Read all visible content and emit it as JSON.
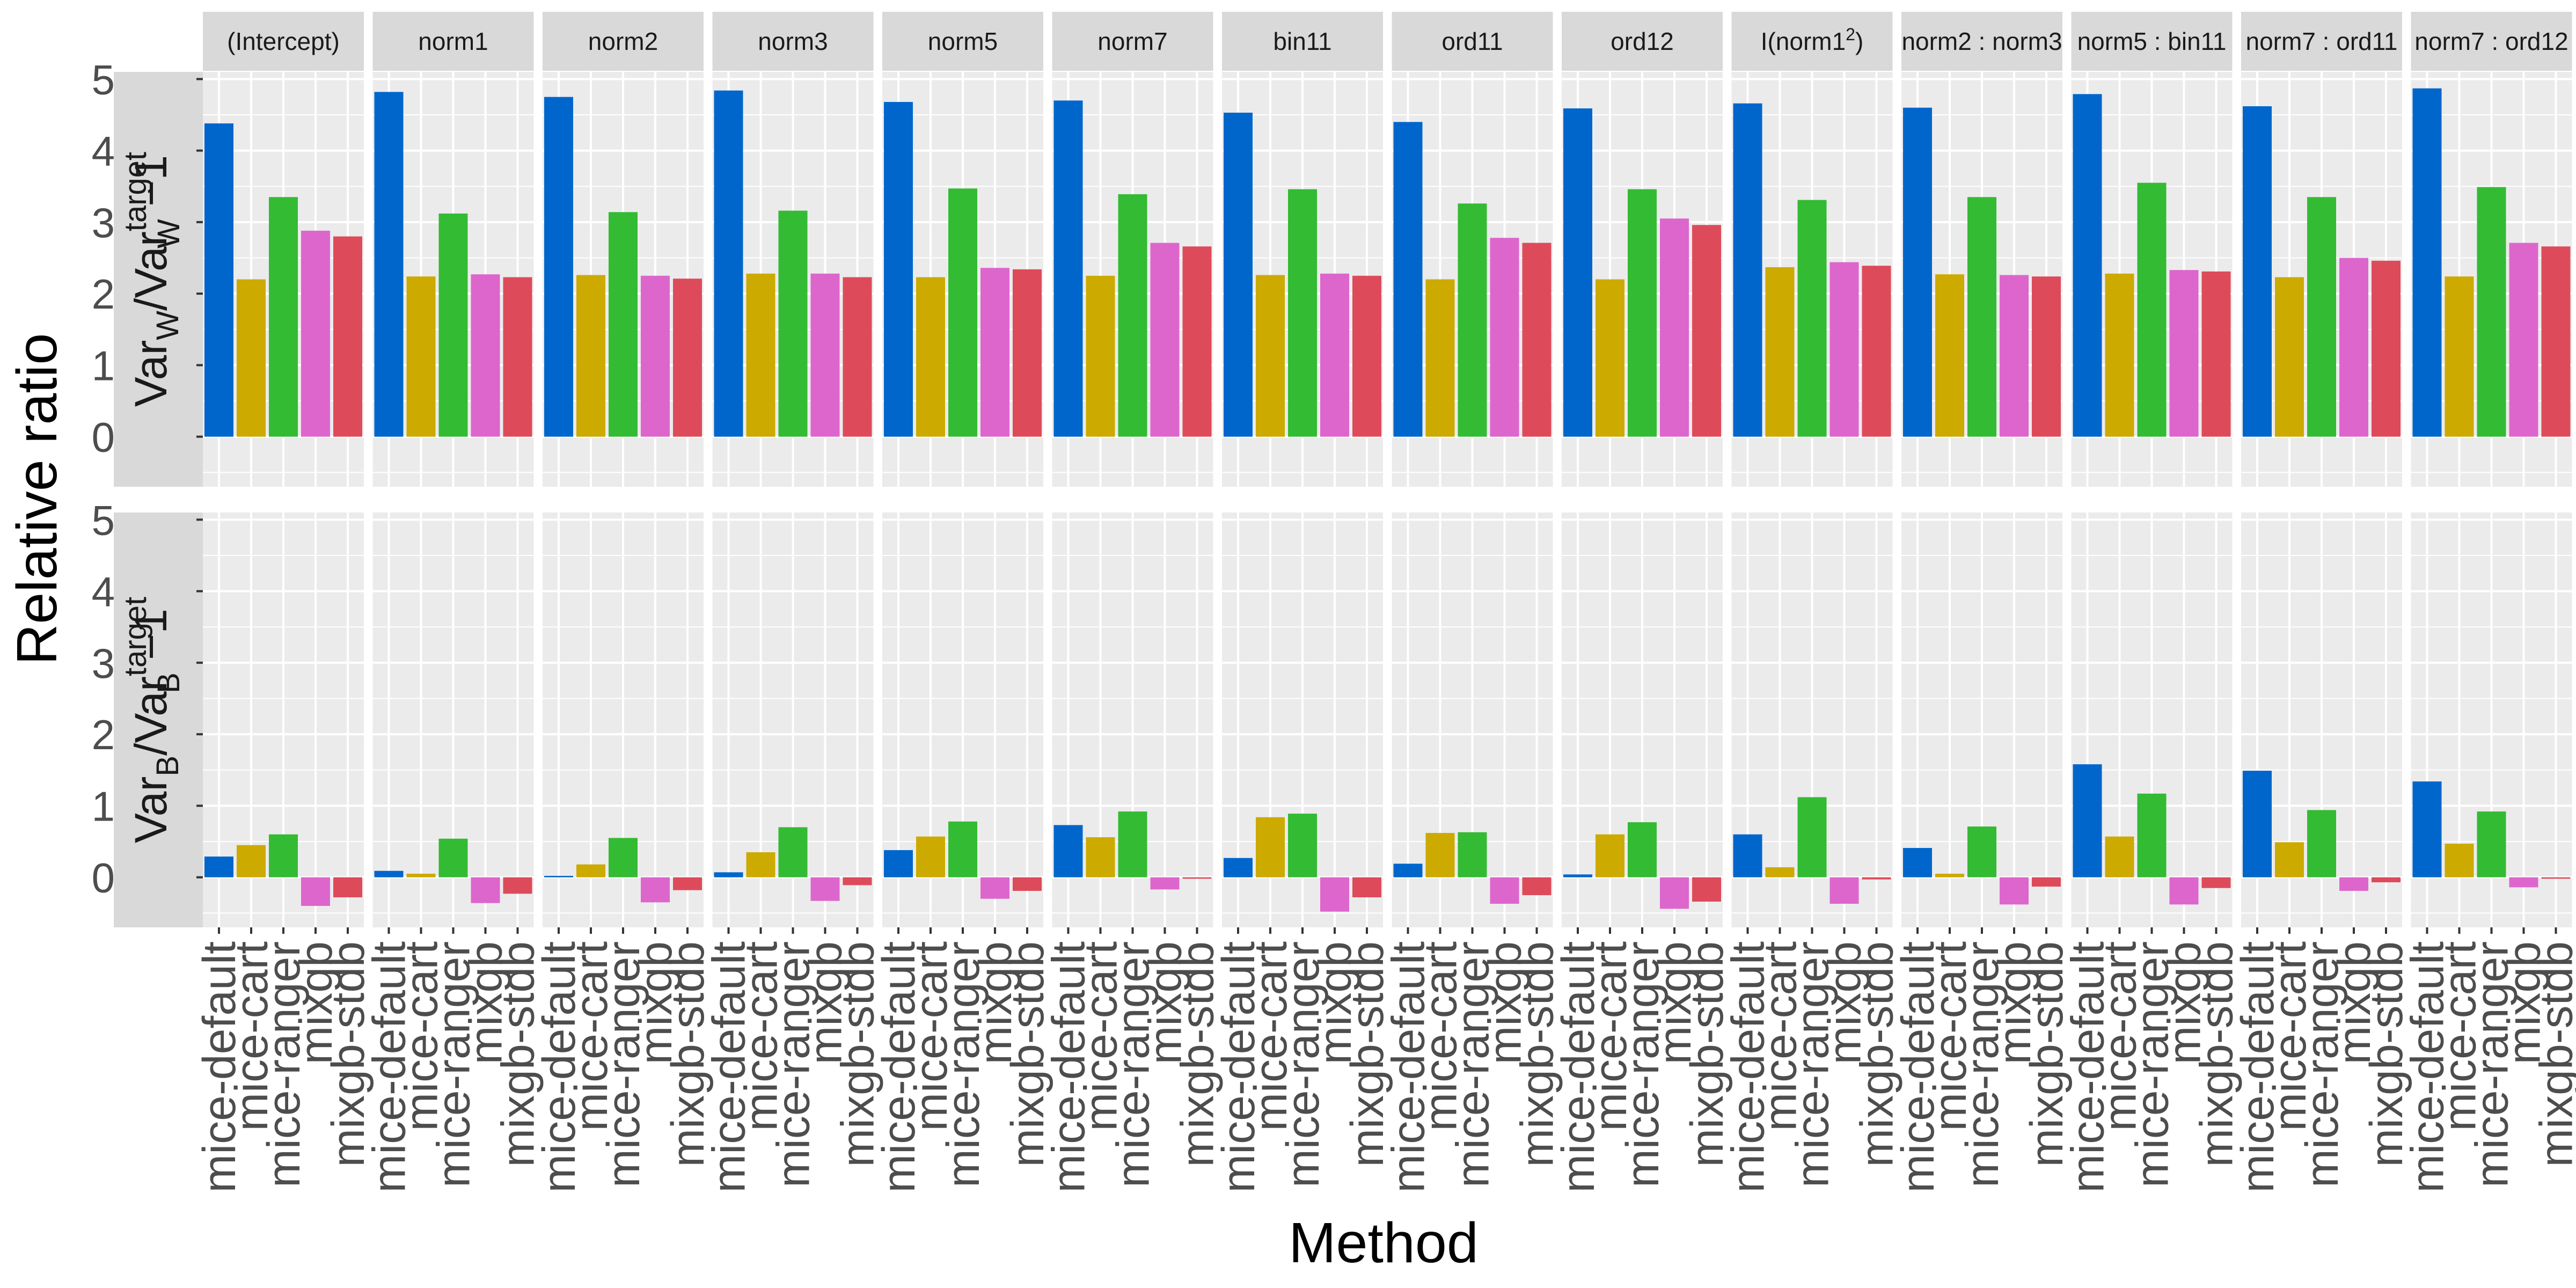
{
  "chart_data": {
    "type": "bar",
    "xlabel": "Method",
    "ylabel": "Relative ratio",
    "ylim": [
      -0.7,
      5.1
    ],
    "yticks": [
      "0",
      "1",
      "2",
      "3",
      "4",
      "5"
    ],
    "methods": [
      "mice-default",
      "mice-cart",
      "mice-ranger",
      "mixgb",
      "mixgb-stdb"
    ],
    "colors": [
      "#0066CC",
      "#CCAA00",
      "#33BB33",
      "#DD66CC",
      "#DD4B5A"
    ],
    "facets": [
      "(Intercept)",
      "norm1",
      "norm2",
      "norm3",
      "norm5",
      "norm7",
      "bin11",
      "ord11",
      "ord12",
      "I(norm1^2)",
      "norm2 : norm3",
      "norm5 : bin11",
      "norm7 : ord11",
      "norm7 : ord12"
    ],
    "rows": [
      {
        "label": {
          "base": "Var",
          "sub": "W",
          "mid": "/Var",
          "sup": "target",
          "sub2": "W",
          "tail": " −1"
        },
        "values": [
          [
            4.38,
            2.2,
            3.35,
            2.88,
            2.8
          ],
          [
            4.82,
            2.24,
            3.12,
            2.27,
            2.23
          ],
          [
            4.75,
            2.26,
            3.14,
            2.25,
            2.21
          ],
          [
            4.84,
            2.28,
            3.16,
            2.28,
            2.23
          ],
          [
            4.68,
            2.23,
            3.47,
            2.36,
            2.34
          ],
          [
            4.7,
            2.25,
            3.39,
            2.71,
            2.66
          ],
          [
            4.53,
            2.26,
            3.46,
            2.28,
            2.25
          ],
          [
            4.4,
            2.2,
            3.26,
            2.78,
            2.71
          ],
          [
            4.59,
            2.2,
            3.46,
            3.05,
            2.96
          ],
          [
            4.66,
            2.37,
            3.31,
            2.44,
            2.39
          ],
          [
            4.6,
            2.27,
            3.35,
            2.26,
            2.24
          ],
          [
            4.79,
            2.28,
            3.55,
            2.33,
            2.31
          ],
          [
            4.62,
            2.23,
            3.35,
            2.5,
            2.46
          ],
          [
            4.87,
            2.24,
            3.49,
            2.71,
            2.66
          ]
        ]
      },
      {
        "label": {
          "base": "Var",
          "sub": "B",
          "mid": "/Var",
          "sup": "target",
          "sub2": "B",
          "tail": " −1"
        },
        "values": [
          [
            0.29,
            0.45,
            0.6,
            -0.4,
            -0.28
          ],
          [
            0.09,
            0.05,
            0.54,
            -0.36,
            -0.23
          ],
          [
            0.02,
            0.18,
            0.55,
            -0.35,
            -0.18
          ],
          [
            0.07,
            0.35,
            0.7,
            -0.33,
            -0.11
          ],
          [
            0.38,
            0.57,
            0.78,
            -0.3,
            -0.19
          ],
          [
            0.73,
            0.56,
            0.92,
            -0.17,
            -0.02
          ],
          [
            0.27,
            0.84,
            0.89,
            -0.48,
            -0.28
          ],
          [
            0.19,
            0.62,
            0.63,
            -0.37,
            -0.25
          ],
          [
            0.04,
            0.6,
            0.77,
            -0.44,
            -0.34
          ],
          [
            0.6,
            0.14,
            1.12,
            -0.37,
            -0.03
          ],
          [
            0.41,
            0.05,
            0.71,
            -0.38,
            -0.13
          ],
          [
            1.58,
            0.57,
            1.17,
            -0.38,
            -0.15
          ],
          [
            1.49,
            0.49,
            0.94,
            -0.19,
            -0.07
          ],
          [
            1.34,
            0.47,
            0.92,
            -0.14,
            -0.02
          ]
        ]
      }
    ]
  }
}
